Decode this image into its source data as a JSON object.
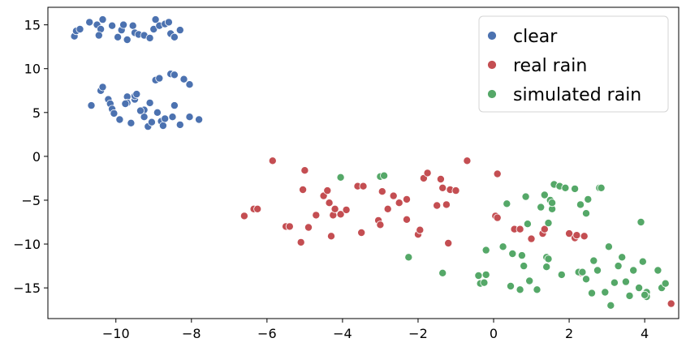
{
  "chart_data": {
    "type": "scatter",
    "xlim": [
      -11.8,
      4.9
    ],
    "ylim": [
      -18.5,
      17.0
    ],
    "xticks": [
      -10,
      -8,
      -6,
      -4,
      -2,
      0,
      2,
      4
    ],
    "xtick_labels": [
      "−10",
      "−8",
      "−6",
      "−4",
      "−2",
      "0",
      "2",
      "4"
    ],
    "yticks": [
      15,
      10,
      5,
      0,
      -5,
      -10,
      -15
    ],
    "ytick_labels": [
      "15",
      "10",
      "5",
      "0",
      "−5",
      "−10",
      "−15"
    ],
    "grid": false,
    "legend_position": "top-right",
    "series": [
      {
        "name": "clear",
        "color": "#4c72b0",
        "points": [
          [
            -11.1,
            13.7
          ],
          [
            -11.05,
            14.3
          ],
          [
            -10.95,
            14.5
          ],
          [
            -10.7,
            15.3
          ],
          [
            -10.5,
            15.0
          ],
          [
            -10.4,
            14.5
          ],
          [
            -10.45,
            13.8
          ],
          [
            -10.35,
            15.6
          ],
          [
            -10.1,
            14.9
          ],
          [
            -9.95,
            13.6
          ],
          [
            -9.85,
            14.4
          ],
          [
            -9.8,
            15.0
          ],
          [
            -9.7,
            13.3
          ],
          [
            -9.55,
            14.9
          ],
          [
            -9.5,
            14.1
          ],
          [
            -9.4,
            13.9
          ],
          [
            -9.25,
            13.8
          ],
          [
            -9.1,
            13.5
          ],
          [
            -9.0,
            14.5
          ],
          [
            -8.95,
            15.6
          ],
          [
            -8.85,
            14.9
          ],
          [
            -8.7,
            15.1
          ],
          [
            -8.6,
            15.3
          ],
          [
            -8.55,
            14.0
          ],
          [
            -8.45,
            13.6
          ],
          [
            -8.3,
            14.4
          ],
          [
            -10.65,
            5.8
          ],
          [
            -10.4,
            7.5
          ],
          [
            -10.35,
            7.9
          ],
          [
            -10.2,
            6.5
          ],
          [
            -10.15,
            6.0
          ],
          [
            -10.1,
            5.4
          ],
          [
            -10.05,
            4.9
          ],
          [
            -9.9,
            4.2
          ],
          [
            -9.7,
            6.8
          ],
          [
            -9.7,
            6.1
          ],
          [
            -9.6,
            3.8
          ],
          [
            -9.5,
            6.5
          ],
          [
            -9.5,
            6.9
          ],
          [
            -9.45,
            7.1
          ],
          [
            -9.25,
            5.3
          ],
          [
            -9.25,
            4.5
          ],
          [
            -9.15,
            3.4
          ],
          [
            -9.1,
            6.1
          ],
          [
            -9.05,
            3.9
          ],
          [
            -8.95,
            8.7
          ],
          [
            -8.9,
            5.0
          ],
          [
            -8.85,
            8.9
          ],
          [
            -8.8,
            4.0
          ],
          [
            -8.75,
            3.5
          ],
          [
            -8.7,
            4.3
          ],
          [
            -8.55,
            9.4
          ],
          [
            -8.5,
            4.5
          ],
          [
            -8.45,
            9.3
          ],
          [
            -8.45,
            5.8
          ],
          [
            -8.3,
            3.6
          ],
          [
            -8.2,
            8.8
          ],
          [
            -8.05,
            4.5
          ],
          [
            -8.05,
            8.2
          ],
          [
            -7.8,
            4.2
          ],
          [
            -9.75,
            6.0
          ],
          [
            -9.35,
            5.2
          ]
        ]
      },
      {
        "name": "real rain",
        "color": "#c44e52",
        "points": [
          [
            -6.6,
            -6.8
          ],
          [
            -6.35,
            -6.0
          ],
          [
            -6.25,
            -6.0
          ],
          [
            -5.85,
            -0.5
          ],
          [
            -5.5,
            -8.0
          ],
          [
            -5.4,
            -8.0
          ],
          [
            -5.1,
            -9.8
          ],
          [
            -5.05,
            -3.8
          ],
          [
            -5.0,
            -1.6
          ],
          [
            -4.9,
            -8.1
          ],
          [
            -4.7,
            -6.7
          ],
          [
            -4.5,
            -4.5
          ],
          [
            -4.4,
            -3.9
          ],
          [
            -4.35,
            -5.3
          ],
          [
            -4.3,
            -9.1
          ],
          [
            -4.25,
            -6.7
          ],
          [
            -4.2,
            -6.0
          ],
          [
            -4.05,
            -6.6
          ],
          [
            -3.9,
            -6.1
          ],
          [
            -3.6,
            -3.4
          ],
          [
            -3.5,
            -8.7
          ],
          [
            -3.45,
            -3.4
          ],
          [
            -3.05,
            -7.3
          ],
          [
            -3.0,
            -7.8
          ],
          [
            -2.95,
            -4.0
          ],
          [
            -2.8,
            -6.0
          ],
          [
            -2.65,
            -4.5
          ],
          [
            -2.5,
            -5.3
          ],
          [
            -2.3,
            -4.9
          ],
          [
            -2.3,
            -7.2
          ],
          [
            -2.0,
            -8.9
          ],
          [
            -1.95,
            -8.4
          ],
          [
            -1.85,
            -2.5
          ],
          [
            -1.75,
            -1.9
          ],
          [
            -1.5,
            -5.6
          ],
          [
            -1.4,
            -2.6
          ],
          [
            -1.35,
            -3.6
          ],
          [
            -1.2,
            -9.9
          ],
          [
            -1.15,
            -3.8
          ],
          [
            -1.0,
            -3.9
          ],
          [
            -1.25,
            -5.5
          ],
          [
            -0.7,
            -0.5
          ],
          [
            0.05,
            -6.8
          ],
          [
            0.1,
            -7.0
          ],
          [
            0.1,
            -2.0
          ],
          [
            0.55,
            -8.3
          ],
          [
            0.7,
            -8.3
          ],
          [
            1.0,
            -9.4
          ],
          [
            1.3,
            -8.8
          ],
          [
            1.35,
            -8.3
          ],
          [
            2.0,
            -8.8
          ],
          [
            2.15,
            -9.3
          ],
          [
            2.2,
            -9.0
          ],
          [
            2.4,
            -9.1
          ],
          [
            2.3,
            -13.3
          ],
          [
            4.7,
            -16.8
          ]
        ]
      },
      {
        "name": "simulated rain",
        "color": "#55a868",
        "points": [
          [
            -4.05,
            -2.4
          ],
          [
            -3.0,
            -2.3
          ],
          [
            -2.9,
            -2.2
          ],
          [
            -2.25,
            -11.5
          ],
          [
            -1.35,
            -13.3
          ],
          [
            -0.4,
            -13.6
          ],
          [
            -0.35,
            -14.5
          ],
          [
            -0.25,
            -14.4
          ],
          [
            -0.2,
            -13.5
          ],
          [
            -0.2,
            -10.7
          ],
          [
            0.25,
            -10.3
          ],
          [
            0.35,
            -5.4
          ],
          [
            0.45,
            -14.8
          ],
          [
            0.5,
            -11.1
          ],
          [
            0.7,
            -15.2
          ],
          [
            0.75,
            -11.3
          ],
          [
            0.8,
            -12.5
          ],
          [
            0.85,
            -4.6
          ],
          [
            0.9,
            -7.7
          ],
          [
            0.95,
            -14.2
          ],
          [
            1.15,
            -15.2
          ],
          [
            1.25,
            -5.8
          ],
          [
            1.35,
            -4.4
          ],
          [
            1.4,
            -11.5
          ],
          [
            1.4,
            -12.6
          ],
          [
            1.45,
            -11.7
          ],
          [
            1.45,
            -7.6
          ],
          [
            1.5,
            -5.0
          ],
          [
            1.55,
            -6.0
          ],
          [
            1.55,
            -5.3
          ],
          [
            1.6,
            -3.2
          ],
          [
            1.75,
            -3.4
          ],
          [
            1.8,
            -13.5
          ],
          [
            1.9,
            -3.6
          ],
          [
            2.15,
            -3.7
          ],
          [
            2.25,
            -13.2
          ],
          [
            2.3,
            -5.5
          ],
          [
            2.35,
            -13.2
          ],
          [
            2.45,
            -14.0
          ],
          [
            2.45,
            -6.5
          ],
          [
            2.5,
            -4.9
          ],
          [
            2.6,
            -15.6
          ],
          [
            2.65,
            -11.9
          ],
          [
            2.75,
            -13.0
          ],
          [
            2.8,
            -3.6
          ],
          [
            2.85,
            -3.6
          ],
          [
            2.95,
            -15.5
          ],
          [
            3.05,
            -10.3
          ],
          [
            3.1,
            -17.0
          ],
          [
            3.2,
            -14.4
          ],
          [
            3.3,
            -12.5
          ],
          [
            3.4,
            -11.5
          ],
          [
            3.5,
            -14.3
          ],
          [
            3.6,
            -15.9
          ],
          [
            3.7,
            -13.0
          ],
          [
            3.85,
            -15.0
          ],
          [
            3.9,
            -7.5
          ],
          [
            3.95,
            -12.0
          ],
          [
            4.05,
            -15.5
          ],
          [
            4.05,
            -16.0
          ],
          [
            4.35,
            -13.0
          ],
          [
            4.45,
            -15.0
          ],
          [
            4.55,
            -14.5
          ],
          [
            4.0,
            -15.8
          ]
        ]
      }
    ]
  }
}
